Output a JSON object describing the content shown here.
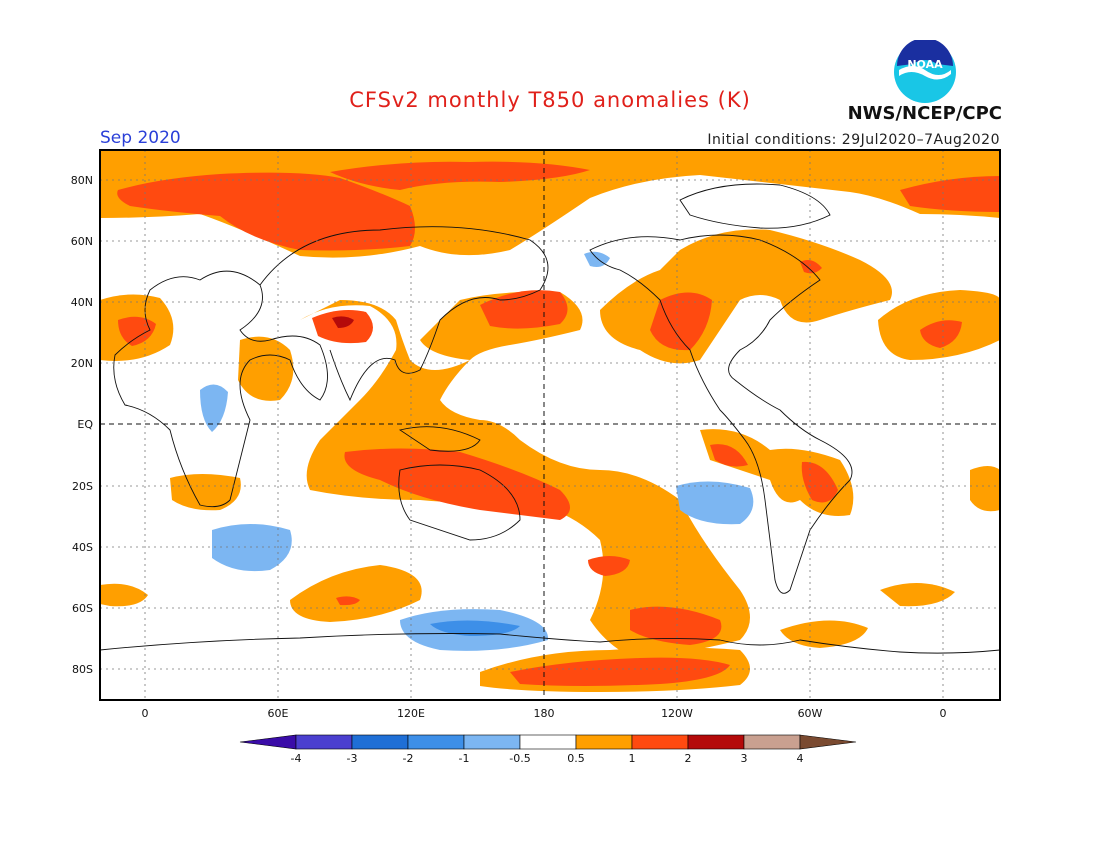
{
  "header": {
    "title": "CFSv2 monthly T850 anomalies (K)",
    "period": "Sep 2020",
    "initial_conditions": "Initial conditions: 29Jul2020–7Aug2020",
    "agency": "NWS/NCEP/CPC",
    "logo_text": "NOAA"
  },
  "axes": {
    "lat_labels": [
      "80N",
      "60N",
      "40N",
      "20N",
      "EQ",
      "20S",
      "40S",
      "60S",
      "80S"
    ],
    "lon_labels": [
      "0",
      "60E",
      "120E",
      "180",
      "120W",
      "60W",
      "0"
    ]
  },
  "colorbar": {
    "labels": [
      "-4",
      "-3",
      "-2",
      "-1",
      "-0.5",
      "0.5",
      "1",
      "2",
      "3",
      "4"
    ],
    "colors": [
      "#3a0ca8",
      "#4b3fcf",
      "#1f6fd6",
      "#3d8fe8",
      "#7cb6f2",
      "#ffffff",
      "#ff9f00",
      "#ff4a10",
      "#b40a0a",
      "#c9a090",
      "#7a4a30"
    ]
  },
  "colors": {
    "warm1": "#ff9f00",
    "warm2": "#ff4a10",
    "warm3": "#b40a0a",
    "cool1": "#7cb6f2",
    "cool2": "#3d8fe8"
  }
}
